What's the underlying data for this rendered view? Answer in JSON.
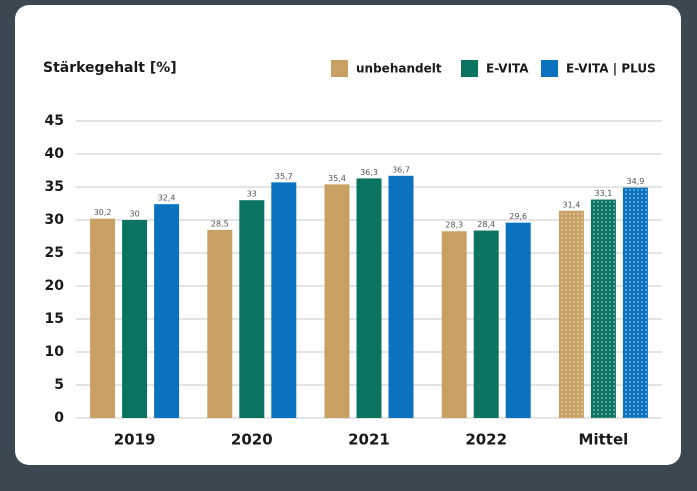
{
  "chart_data": {
    "type": "bar",
    "title": "Stärkegehalt [%]",
    "categories": [
      "2019",
      "2020",
      "2021",
      "2022",
      "Mittel"
    ],
    "series": [
      {
        "name": "unbehandelt",
        "color": "#c9a063",
        "values": [
          30.2,
          28.5,
          35.4,
          28.3,
          31.4
        ],
        "value_labels": [
          "30,2",
          "28,5",
          "35,4",
          "28,3",
          "31,4"
        ]
      },
      {
        "name": "E-VITA",
        "color": "#0b7461",
        "values": [
          30,
          33,
          36.3,
          28.4,
          33.1
        ],
        "value_labels": [
          "30",
          "33",
          "36,3",
          "28,4",
          "33,1"
        ]
      },
      {
        "name": "E-VITA | PLUS",
        "color": "#0a72bf",
        "values": [
          32.4,
          35.7,
          36.7,
          29.6,
          34.9
        ],
        "value_labels": [
          "32,4",
          "35,7",
          "36,7",
          "29,6",
          "34,9"
        ]
      }
    ],
    "ylim": [
      0,
      45
    ],
    "yticks": [
      0,
      5,
      10,
      15,
      20,
      25,
      30,
      35,
      40,
      45
    ],
    "grid": true,
    "legend": "top-right"
  }
}
